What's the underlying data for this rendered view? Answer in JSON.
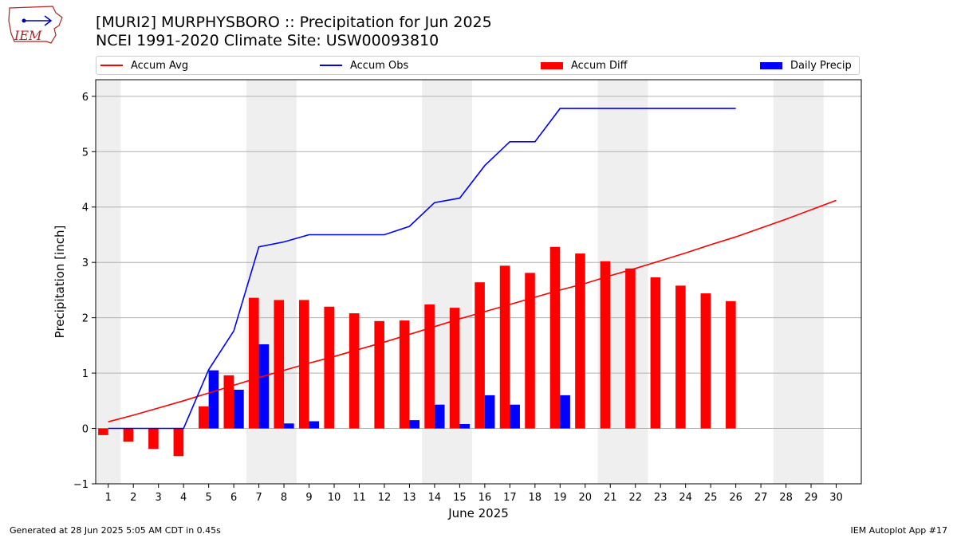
{
  "header": {
    "title_line1": "[MURI2] MURPHYSBORO :: Precipitation for Jun 2025",
    "title_line2": "NCEI 1991-2020 Climate Site: USW00093810"
  },
  "logo": {
    "text": "IEM"
  },
  "footer": {
    "left": "Generated at 28 Jun 2025 5:05 AM CDT in 0.45s",
    "right": "IEM Autoplot App #17"
  },
  "colors": {
    "accum_avg": "#ff0000",
    "accum_obs": "#0000ff",
    "accum_diff": "#ff0000",
    "daily_precip": "#0000ff",
    "weekend_band": "#efefef",
    "grid": "#b0b0b0"
  },
  "legend": [
    {
      "label": "Accum Avg",
      "kind": "line",
      "color": "#ff0000"
    },
    {
      "label": "Accum Obs",
      "kind": "line",
      "color": "#0000ff"
    },
    {
      "label": "Accum Diff",
      "kind": "box",
      "color": "#ff0000"
    },
    {
      "label": "Daily Precip",
      "kind": "box",
      "color": "#0000ff"
    }
  ],
  "chart_data": {
    "type": "bar",
    "xlabel": "June 2025",
    "ylabel": "Precipitation [inch]",
    "ylim": [
      -1,
      6.3
    ],
    "xlim": [
      0.5,
      31
    ],
    "yticks": [
      -1,
      0,
      1,
      2,
      3,
      4,
      5,
      6
    ],
    "xticks": [
      1,
      2,
      3,
      4,
      5,
      6,
      7,
      8,
      9,
      10,
      11,
      12,
      13,
      14,
      15,
      16,
      17,
      18,
      19,
      20,
      21,
      22,
      23,
      24,
      25,
      26,
      27,
      28,
      29,
      30
    ],
    "grid": true,
    "legend_position": "top",
    "weekend_bands": [
      [
        0.5,
        1.5
      ],
      [
        6.5,
        8.5
      ],
      [
        13.5,
        15.5
      ],
      [
        20.5,
        22.5
      ],
      [
        27.5,
        29.5
      ]
    ],
    "series": [
      {
        "name": "Accum Avg",
        "type": "line",
        "x": [
          1,
          2,
          3,
          4,
          5,
          6,
          7,
          8,
          9,
          10,
          11,
          12,
          13,
          14,
          15,
          16,
          17,
          18,
          19,
          20,
          21,
          22,
          23,
          24,
          25,
          26,
          27,
          28,
          29,
          30
        ],
        "values": [
          0.12,
          0.24,
          0.37,
          0.5,
          0.64,
          0.78,
          0.92,
          1.05,
          1.18,
          1.3,
          1.43,
          1.56,
          1.7,
          1.84,
          1.98,
          2.11,
          2.24,
          2.37,
          2.5,
          2.62,
          2.76,
          2.89,
          3.03,
          3.17,
          3.32,
          3.46,
          3.62,
          3.78,
          3.95,
          4.12
        ]
      },
      {
        "name": "Accum Obs",
        "type": "line",
        "x": [
          1,
          2,
          3,
          4,
          5,
          6,
          7,
          8,
          9,
          10,
          11,
          12,
          13,
          14,
          15,
          16,
          17,
          18,
          19,
          20,
          21,
          22,
          23,
          24,
          25,
          26
        ],
        "values": [
          0,
          0,
          0,
          0,
          1.06,
          1.76,
          3.28,
          3.37,
          3.5,
          3.5,
          3.5,
          3.5,
          3.65,
          4.08,
          4.16,
          4.75,
          5.18,
          5.18,
          5.78,
          5.78,
          5.78,
          5.78,
          5.78,
          5.78,
          5.78,
          5.78
        ]
      },
      {
        "name": "Accum Diff",
        "type": "bar",
        "x": [
          1,
          2,
          3,
          4,
          5,
          6,
          7,
          8,
          9,
          10,
          11,
          12,
          13,
          14,
          15,
          16,
          17,
          18,
          19,
          20,
          21,
          22,
          23,
          24,
          25,
          26
        ],
        "values": [
          -0.12,
          -0.24,
          -0.37,
          -0.5,
          0.4,
          0.96,
          2.36,
          2.32,
          2.32,
          2.2,
          2.08,
          1.94,
          1.95,
          2.24,
          2.18,
          2.64,
          2.94,
          2.81,
          3.28,
          3.16,
          3.02,
          2.89,
          2.73,
          2.58,
          2.44,
          2.3
        ]
      },
      {
        "name": "Daily Precip",
        "type": "bar",
        "x": [
          1,
          2,
          3,
          4,
          5,
          6,
          7,
          8,
          9,
          10,
          11,
          12,
          13,
          14,
          15,
          16,
          17,
          18,
          19,
          20,
          21,
          22,
          23,
          24,
          25,
          26
        ],
        "values": [
          0,
          0,
          0,
          0,
          1.05,
          0.7,
          1.52,
          0.09,
          0.13,
          0,
          0,
          0,
          0.15,
          0.43,
          0.08,
          0.6,
          0.43,
          0,
          0.6,
          0,
          0,
          0,
          0,
          0,
          0,
          0
        ]
      }
    ]
  }
}
